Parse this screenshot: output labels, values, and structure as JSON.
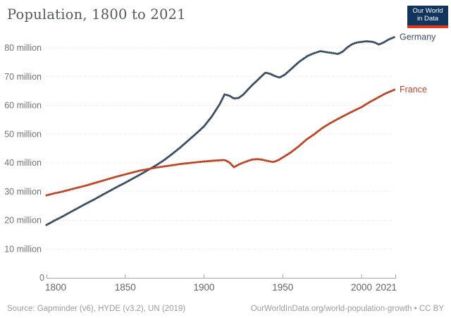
{
  "header": {
    "title": "Population, 1800 to 2021"
  },
  "logo": {
    "line1": "Our World",
    "line2": "in Data",
    "bg_color": "#12355e",
    "stripe_color": "#dc3a21"
  },
  "footer": {
    "source": "Source: Gapminder (v6), HYDE (v3.2), UN (2019)",
    "link": "OurWorldInData.org/world-population-growth • CC BY"
  },
  "chart_data": {
    "type": "line",
    "title": "Population, 1800 to 2021",
    "unit": "million people",
    "legend_position": "end-of-line labels",
    "grid": "dotted horizontal",
    "x_axis": {
      "range": [
        1800,
        2021
      ],
      "ticks": [
        1800,
        1850,
        1900,
        1950,
        2000,
        2021
      ],
      "tick_labels": [
        "1800",
        "1850",
        "1900",
        "1950",
        "2000",
        "2021"
      ]
    },
    "y_axis": {
      "range_millions": [
        0,
        80
      ],
      "ticks": [
        0,
        10,
        20,
        30,
        40,
        50,
        60,
        70,
        80
      ],
      "tick_labels": [
        "0",
        "10 million",
        "20 million",
        "30 million",
        "40 million",
        "50 million",
        "60 million",
        "70 million",
        "80 million"
      ]
    },
    "series": [
      {
        "name": "Germany",
        "color": "#3b4d63",
        "points": [
          [
            1800,
            18.4
          ],
          [
            1805,
            19.9
          ],
          [
            1810,
            21.3
          ],
          [
            1815,
            22.8
          ],
          [
            1820,
            24.3
          ],
          [
            1825,
            25.8
          ],
          [
            1830,
            27.2
          ],
          [
            1835,
            28.7
          ],
          [
            1840,
            30.2
          ],
          [
            1845,
            31.7
          ],
          [
            1850,
            33.1
          ],
          [
            1855,
            34.6
          ],
          [
            1860,
            36.1
          ],
          [
            1865,
            37.7
          ],
          [
            1870,
            39.3
          ],
          [
            1875,
            41.1
          ],
          [
            1880,
            43.2
          ],
          [
            1885,
            45.4
          ],
          [
            1890,
            47.8
          ],
          [
            1895,
            50.2
          ],
          [
            1900,
            52.7
          ],
          [
            1905,
            56.2
          ],
          [
            1910,
            60.5
          ],
          [
            1913,
            63.8
          ],
          [
            1916,
            63.4
          ],
          [
            1919,
            62.4
          ],
          [
            1922,
            62.6
          ],
          [
            1925,
            63.8
          ],
          [
            1928,
            65.6
          ],
          [
            1931,
            67.3
          ],
          [
            1934,
            68.8
          ],
          [
            1937,
            70.4
          ],
          [
            1939,
            71.4
          ],
          [
            1942,
            71.0
          ],
          [
            1945,
            70.2
          ],
          [
            1948,
            69.7
          ],
          [
            1951,
            70.6
          ],
          [
            1954,
            72.0
          ],
          [
            1957,
            73.5
          ],
          [
            1960,
            75.0
          ],
          [
            1963,
            76.2
          ],
          [
            1966,
            77.3
          ],
          [
            1970,
            78.2
          ],
          [
            1974,
            78.9
          ],
          [
            1978,
            78.5
          ],
          [
            1982,
            78.2
          ],
          [
            1985,
            77.9
          ],
          [
            1988,
            78.7
          ],
          [
            1991,
            80.2
          ],
          [
            1994,
            81.3
          ],
          [
            1997,
            81.9
          ],
          [
            2000,
            82.1
          ],
          [
            2003,
            82.3
          ],
          [
            2006,
            82.2
          ],
          [
            2008,
            82.0
          ],
          [
            2011,
            81.2
          ],
          [
            2014,
            81.9
          ],
          [
            2017,
            82.9
          ],
          [
            2021,
            83.8
          ]
        ]
      },
      {
        "name": "France",
        "color": "#bc4526",
        "points": [
          [
            1800,
            28.7
          ],
          [
            1805,
            29.4
          ],
          [
            1810,
            30.0
          ],
          [
            1815,
            30.7
          ],
          [
            1820,
            31.4
          ],
          [
            1825,
            32.1
          ],
          [
            1830,
            32.9
          ],
          [
            1835,
            33.7
          ],
          [
            1840,
            34.5
          ],
          [
            1845,
            35.3
          ],
          [
            1850,
            36.0
          ],
          [
            1855,
            36.7
          ],
          [
            1860,
            37.4
          ],
          [
            1865,
            37.9
          ],
          [
            1870,
            38.4
          ],
          [
            1875,
            38.8
          ],
          [
            1880,
            39.2
          ],
          [
            1885,
            39.6
          ],
          [
            1890,
            39.9
          ],
          [
            1895,
            40.2
          ],
          [
            1900,
            40.5
          ],
          [
            1905,
            40.7
          ],
          [
            1910,
            40.9
          ],
          [
            1913,
            41.0
          ],
          [
            1916,
            40.2
          ],
          [
            1919,
            38.5
          ],
          [
            1922,
            39.4
          ],
          [
            1925,
            40.1
          ],
          [
            1928,
            40.7
          ],
          [
            1931,
            41.2
          ],
          [
            1934,
            41.3
          ],
          [
            1937,
            41.1
          ],
          [
            1940,
            40.7
          ],
          [
            1944,
            40.3
          ],
          [
            1947,
            40.9
          ],
          [
            1950,
            41.9
          ],
          [
            1955,
            43.6
          ],
          [
            1960,
            45.7
          ],
          [
            1965,
            48.1
          ],
          [
            1970,
            50.0
          ],
          [
            1975,
            52.1
          ],
          [
            1980,
            53.8
          ],
          [
            1985,
            55.3
          ],
          [
            1990,
            56.7
          ],
          [
            1995,
            58.1
          ],
          [
            2000,
            59.4
          ],
          [
            2005,
            61.1
          ],
          [
            2010,
            62.6
          ],
          [
            2015,
            64.1
          ],
          [
            2021,
            65.5
          ]
        ]
      }
    ]
  }
}
